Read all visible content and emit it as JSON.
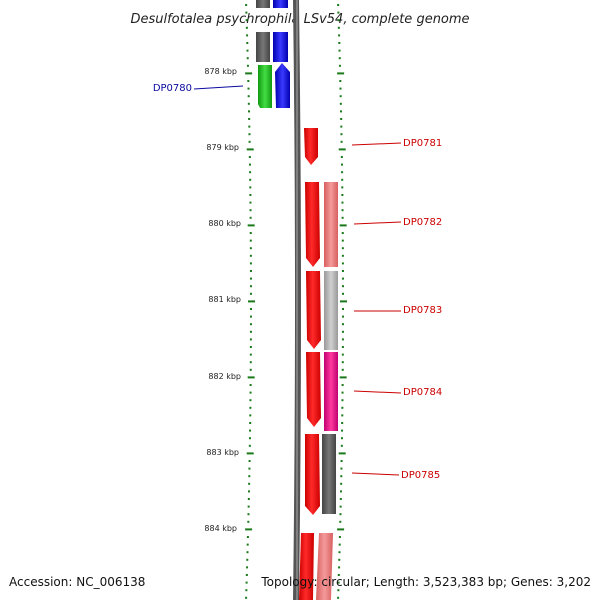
{
  "title": "Desulfotalea psychrophila LSv54, complete genome",
  "accession": "Accession: NC_006138",
  "topology": "Topology: circular; Length: 3,523,383 bp; Genes: 3,202",
  "ticks": [
    "878 kbp",
    "879 kbp",
    "880 kbp",
    "881 kbp",
    "882 kbp",
    "883 kbp",
    "884 kbp"
  ],
  "genes": [
    {
      "id": "DP0780",
      "color": "#0a0aa0",
      "strand": "left"
    },
    {
      "id": "DP0781",
      "color": "#cc0000",
      "strand": "right"
    },
    {
      "id": "DP0782",
      "color": "#cc0000",
      "strand": "right"
    },
    {
      "id": "DP0783",
      "color": "#cc0000",
      "strand": "right"
    },
    {
      "id": "DP0784",
      "color": "#cc0000",
      "strand": "right"
    },
    {
      "id": "DP0785",
      "color": "#cc0000",
      "strand": "right"
    }
  ],
  "colors": {
    "tick": "#1a7a1a",
    "strand_red": "#ee1111",
    "blue": "#1a1aee",
    "green": "#22bb22",
    "pink": "#ee8080",
    "gray": "#b0b0b0",
    "dark_gray": "#666666",
    "magenta": "#ee1188"
  }
}
